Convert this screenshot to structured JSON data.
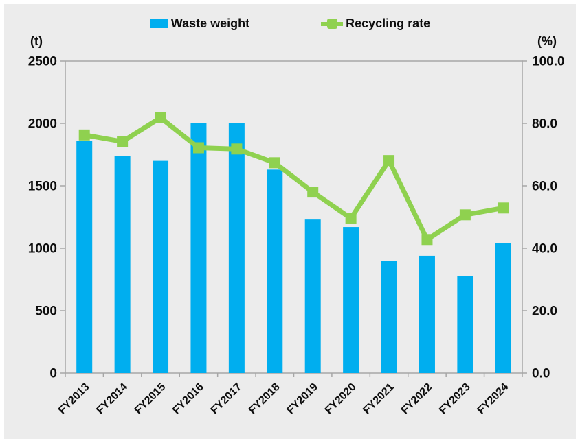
{
  "panel_background": "#ececec",
  "colors": {
    "bar": "#00aeef",
    "line": "#8fd14f",
    "axis": "#a6a6a6",
    "text": "#0d0d0d",
    "background": "#ececec"
  },
  "legend": {
    "position": "top",
    "bar_swatch_icon": "blue-rectangle",
    "line_swatch_icon": "green-line-with-square-marker"
  },
  "chart_data": {
    "type": "bar",
    "subtype": "bar-line-combo",
    "title": "",
    "categories": [
      "FY2013",
      "FY2014",
      "FY2015",
      "FY2016",
      "FY2017",
      "FY2018",
      "FY2019",
      "FY2020",
      "FY2021",
      "FY2022",
      "FY2023",
      "FY2024"
    ],
    "series": [
      {
        "name": "Waste weight",
        "type": "bar",
        "axis": "left",
        "color": "#00aeef",
        "values": [
          1860,
          1740,
          1700,
          2000,
          2000,
          1630,
          1230,
          1170,
          900,
          940,
          780,
          1040
        ]
      },
      {
        "name": "Recycling rate",
        "type": "line",
        "axis": "right",
        "color": "#8fd14f",
        "marker": "square",
        "values": [
          76.3,
          74.2,
          81.8,
          72.2,
          71.8,
          67.4,
          58.0,
          49.6,
          68.1,
          42.8,
          50.7,
          52.9
        ]
      }
    ],
    "left_axis": {
      "unit": "(t)",
      "min": 0,
      "max": 2500,
      "tick_values": [
        0,
        500,
        1000,
        1500,
        2000,
        2500
      ],
      "tick_labels": [
        "0",
        "500",
        "1000",
        "1500",
        "2000",
        "2500"
      ]
    },
    "right_axis": {
      "unit": "(%)",
      "min": 0,
      "max": 100,
      "tick_values": [
        0,
        20,
        40,
        60,
        80,
        100
      ],
      "tick_labels": [
        "0.0",
        "20.0",
        "40.0",
        "60.0",
        "80.0",
        "100.0"
      ]
    },
    "grid": false,
    "legend_position": "top",
    "x_label_rotation_deg": 45
  }
}
